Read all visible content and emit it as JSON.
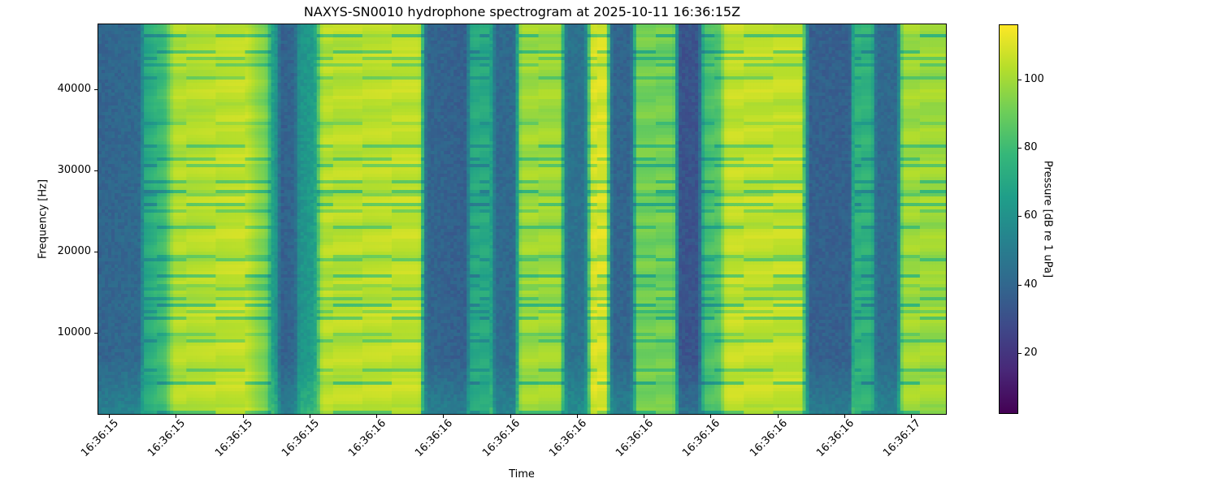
{
  "chart_data": {
    "type": "heatmap",
    "title": "NAXYS-SN0010 hydrophone spectrogram at 2025-10-11 16:36:15Z",
    "xlabel": "Time",
    "ylabel": "Frequency [Hz]",
    "colorbar_label": "Pressure [dB re 1 uPa]",
    "colormap": "viridis",
    "clim": [
      2.3,
      116
    ],
    "ylim": [
      0,
      48000
    ],
    "xlim": [
      "16:36:15.480",
      "16:36:17.065"
    ],
    "yticks": [
      10000,
      20000,
      30000,
      40000
    ],
    "ytick_labels": [
      "10000",
      "20000",
      "30000",
      "40000"
    ],
    "xtick_times": [
      "16:36:15.500",
      "16:36:15.625",
      "16:36:15.750",
      "16:36:15.875",
      "16:36:16.000",
      "16:36:16.125",
      "16:36:16.250",
      "16:36:16.375",
      "16:36:16.500",
      "16:36:16.625",
      "16:36:16.750",
      "16:36:16.875",
      "16:36:17.000"
    ],
    "xtick_labels": [
      "16:36:15",
      "16:36:15",
      "16:36:15",
      "16:36:15",
      "16:36:16",
      "16:36:16",
      "16:36:16",
      "16:36:16",
      "16:36:16",
      "16:36:16",
      "16:36:16",
      "16:36:16",
      "16:36:17"
    ],
    "cticks": [
      20,
      40,
      60,
      80,
      100
    ],
    "ctick_labels": [
      "20",
      "40",
      "60",
      "80",
      "100"
    ],
    "grid": false,
    "level_profile_db": [
      [
        "16:36:15.480",
        40
      ],
      [
        "16:36:15.555",
        42
      ],
      [
        "16:36:15.570",
        72
      ],
      [
        "16:36:15.600",
        80
      ],
      [
        "16:36:15.625",
        103
      ],
      [
        "16:36:15.752",
        106
      ],
      [
        "16:36:15.790",
        95
      ],
      [
        "16:36:15.812",
        62
      ],
      [
        "16:36:15.822",
        38
      ],
      [
        "16:36:15.845",
        40
      ],
      [
        "16:36:15.858",
        62
      ],
      [
        "16:36:15.881",
        65
      ],
      [
        "16:36:15.901",
        104
      ],
      [
        "16:36:16.079",
        106
      ],
      [
        "16:36:16.096",
        40
      ],
      [
        "16:36:16.165",
        38
      ],
      [
        "16:36:16.180",
        72
      ],
      [
        "16:36:16.211",
        72
      ],
      [
        "16:36:16.226",
        42
      ],
      [
        "16:36:16.256",
        42
      ],
      [
        "16:36:16.272",
        100
      ],
      [
        "16:36:16.342",
        100
      ],
      [
        "16:36:16.358",
        46
      ],
      [
        "16:36:16.387",
        46
      ],
      [
        "16:36:16.405",
        110
      ],
      [
        "16:36:16.428",
        110
      ],
      [
        "16:36:16.443",
        40
      ],
      [
        "16:36:16.474",
        40
      ],
      [
        "16:36:16.489",
        92
      ],
      [
        "16:36:16.554",
        92
      ],
      [
        "16:36:16.569",
        33
      ],
      [
        "16:36:16.600",
        33
      ],
      [
        "16:36:16.615",
        82
      ],
      [
        "16:36:16.639",
        85
      ],
      [
        "16:36:16.656",
        106
      ],
      [
        "16:36:16.793",
        106
      ],
      [
        "16:36:16.812",
        38
      ],
      [
        "16:36:16.884",
        38
      ],
      [
        "16:36:16.894",
        76
      ],
      [
        "16:36:16.925",
        76
      ],
      [
        "16:36:16.937",
        42
      ],
      [
        "16:36:16.972",
        42
      ],
      [
        "16:36:16.986",
        100
      ],
      [
        "16:36:17.065",
        100
      ]
    ]
  }
}
